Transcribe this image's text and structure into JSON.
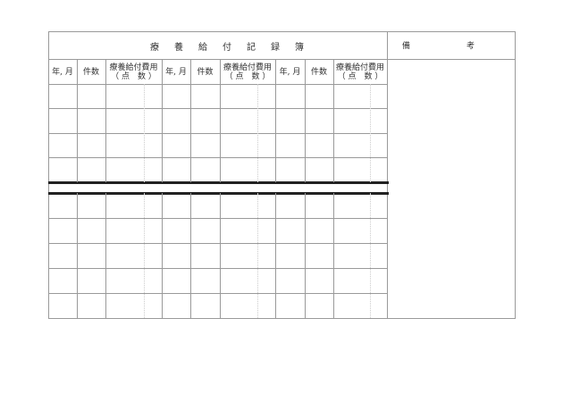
{
  "title": "療養給付記録簿",
  "remarks_label": "備　　　　　　　考",
  "column_headers": [
    {
      "month": "年, 月",
      "count": "件数",
      "cost_line1": "療養給付費用",
      "cost_line2": "（ 点　数 ）"
    },
    {
      "month": "年, 月",
      "count": "件数",
      "cost_line1": "療養給付費用",
      "cost_line2": "（ 点　数 ）"
    },
    {
      "month": "年, 月",
      "count": "件数",
      "cost_line1": "療養給付費用",
      "cost_line2": "（ 点　数 ）"
    }
  ]
}
